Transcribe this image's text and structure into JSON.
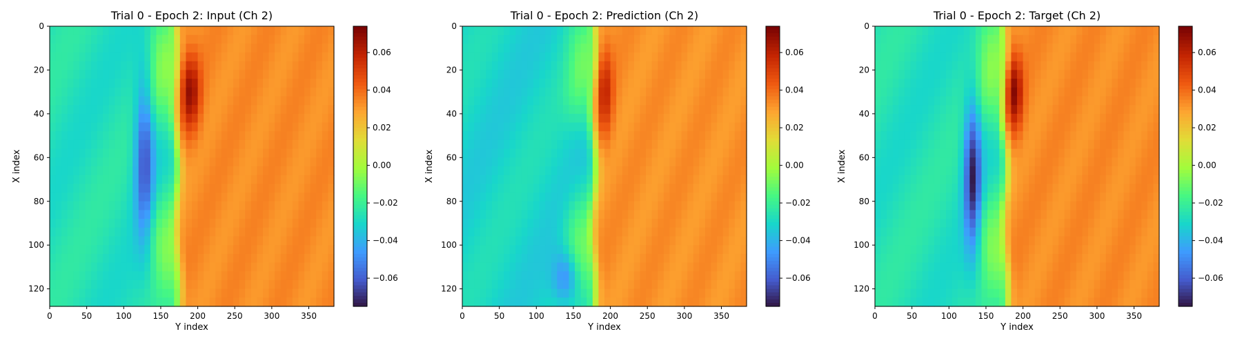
{
  "chart_data": [
    {
      "type": "heatmap",
      "title": "Trial 0 - Epoch 2: Input (Ch 2)",
      "xlabel": "Y index",
      "ylabel": "X index",
      "xlim": [
        0,
        384
      ],
      "ylim": [
        128,
        0
      ],
      "xticks": [
        0,
        50,
        100,
        150,
        200,
        250,
        300,
        350
      ],
      "yticks": [
        0,
        20,
        40,
        60,
        80,
        100,
        120
      ],
      "colorbar": {
        "vmin": -0.075,
        "vmax": 0.074,
        "ticks": [
          "0.06",
          "0.04",
          "0.02",
          "0.00",
          "−0.02",
          "−0.04",
          "−0.06"
        ],
        "tick_values": [
          0.06,
          0.04,
          0.02,
          0.0,
          -0.02,
          -0.04,
          -0.06
        ]
      },
      "colormap": "turbo",
      "features": {
        "front_x": 172,
        "front_slope": 0.03,
        "left_level": -0.026,
        "right_level": 0.034,
        "blob_neg": {
          "x": 128,
          "y": 60,
          "sx": 9,
          "sy": 26,
          "amp": -0.035
        },
        "blob_pos": {
          "x": 190,
          "y": 30,
          "sx": 9,
          "sy": 12,
          "amp": 0.034
        }
      }
    },
    {
      "type": "heatmap",
      "title": "Trial 0 - Epoch 2: Prediction (Ch 2)",
      "xlabel": "Y index",
      "ylabel": "X index",
      "xlim": [
        0,
        384
      ],
      "ylim": [
        128,
        0
      ],
      "xticks": [
        0,
        50,
        100,
        150,
        200,
        250,
        300,
        350
      ],
      "yticks": [
        0,
        20,
        40,
        60,
        80,
        100,
        120
      ],
      "colorbar": {
        "vmin": -0.075,
        "vmax": 0.074,
        "ticks": [
          "0.06",
          "0.04",
          "0.02",
          "0.00",
          "−0.02",
          "−0.04",
          "−0.06"
        ],
        "tick_values": [
          0.06,
          0.04,
          0.02,
          0.0,
          -0.02,
          -0.04,
          -0.06
        ]
      },
      "colormap": "turbo",
      "features": {
        "front_x": 178,
        "front_slope": 0.0,
        "left_level": -0.03,
        "right_level": 0.033,
        "blob_neg": {
          "x": 140,
          "y": 115,
          "sx": 12,
          "sy": 8,
          "amp": -0.02
        },
        "blob_pos": {
          "x": 192,
          "y": 30,
          "sx": 8,
          "sy": 14,
          "amp": 0.025
        }
      }
    },
    {
      "type": "heatmap",
      "title": "Trial 0 - Epoch 2: Target (Ch 2)",
      "xlabel": "Y index",
      "ylabel": "X index",
      "xlim": [
        0,
        384
      ],
      "ylim": [
        128,
        0
      ],
      "xticks": [
        0,
        50,
        100,
        150,
        200,
        250,
        300,
        350
      ],
      "yticks": [
        0,
        20,
        40,
        60,
        80,
        100,
        120
      ],
      "colorbar": {
        "vmin": -0.075,
        "vmax": 0.074,
        "ticks": [
          "0.06",
          "0.04",
          "0.02",
          "0.00",
          "−0.02",
          "−0.04",
          "−0.06"
        ],
        "tick_values": [
          0.06,
          0.04,
          0.02,
          0.0,
          -0.02,
          -0.04,
          -0.06
        ]
      },
      "colormap": "turbo",
      "features": {
        "front_x": 176,
        "front_slope": 0.03,
        "left_level": -0.026,
        "right_level": 0.034,
        "blob_neg": {
          "x": 132,
          "y": 68,
          "sx": 8,
          "sy": 24,
          "amp": -0.045
        },
        "blob_pos": {
          "x": 188,
          "y": 30,
          "sx": 8,
          "sy": 12,
          "amp": 0.036
        }
      }
    }
  ]
}
